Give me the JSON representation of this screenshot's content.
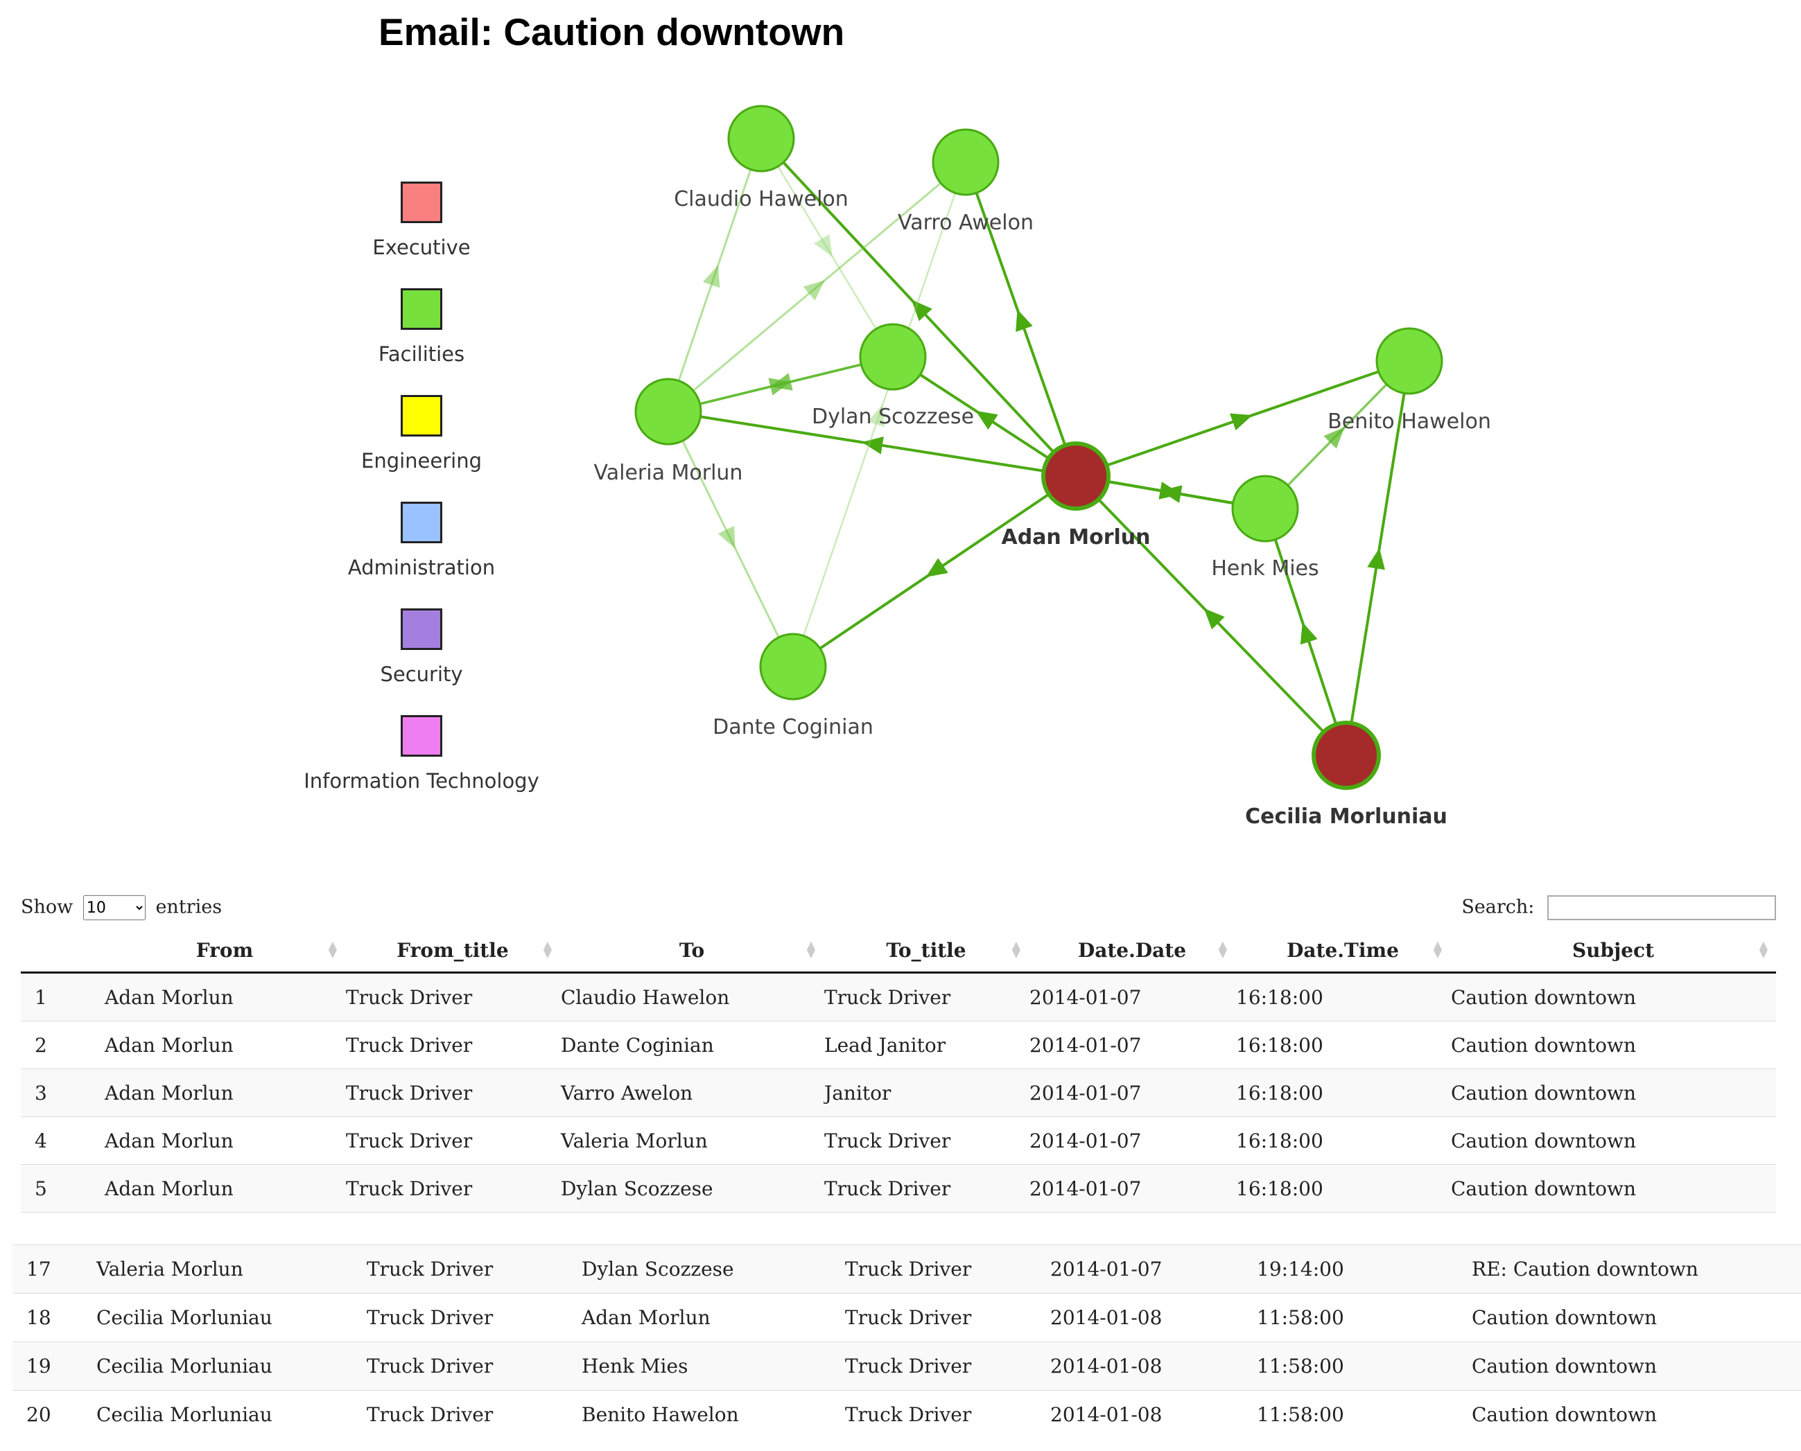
{
  "title": "Email: Caution downtown",
  "legend": [
    {
      "label": "Executive",
      "color": "#f98080"
    },
    {
      "label": "Facilities",
      "color": "#78e03c"
    },
    {
      "label": "Engineering",
      "color": "#ffff00"
    },
    {
      "label": "Administration",
      "color": "#99c2ff"
    },
    {
      "label": "Security",
      "color": "#a57fe0"
    },
    {
      "label": "Information Technology",
      "color": "#ef7ef0"
    }
  ],
  "graph": {
    "node_colors": {
      "Executive": "#a52a2a",
      "Facilities": "#78e03c"
    },
    "nodes": [
      {
        "id": "claudio",
        "label": "Claudio Hawelon",
        "department": "Facilities",
        "bold": false
      },
      {
        "id": "varro",
        "label": "Varro Awelon",
        "department": "Facilities",
        "bold": false
      },
      {
        "id": "dylan",
        "label": "Dylan Scozzese",
        "department": "Facilities",
        "bold": false
      },
      {
        "id": "valeria",
        "label": "Valeria Morlun",
        "department": "Facilities",
        "bold": false
      },
      {
        "id": "adan",
        "label": "Adan Morlun",
        "department": "Executive",
        "bold": true
      },
      {
        "id": "benito",
        "label": "Benito Hawelon",
        "department": "Facilities",
        "bold": false
      },
      {
        "id": "henk",
        "label": "Henk Mies",
        "department": "Facilities",
        "bold": false
      },
      {
        "id": "dante",
        "label": "Dante Coginian",
        "department": "Facilities",
        "bold": false
      },
      {
        "id": "cecilia",
        "label": "Cecilia Morluniau",
        "department": "Executive",
        "bold": true
      }
    ],
    "edges": [
      {
        "from": "adan",
        "to": "claudio",
        "strength": "strong"
      },
      {
        "from": "adan",
        "to": "varro",
        "strength": "strong"
      },
      {
        "from": "adan",
        "to": "dylan",
        "strength": "strong"
      },
      {
        "from": "adan",
        "to": "valeria",
        "strength": "strong"
      },
      {
        "from": "adan",
        "to": "dante",
        "strength": "strong"
      },
      {
        "from": "adan",
        "to": "benito",
        "strength": "strong"
      },
      {
        "from": "adan",
        "to": "henk",
        "strength": "strong"
      },
      {
        "from": "henk",
        "to": "adan",
        "strength": "strong"
      },
      {
        "from": "henk",
        "to": "benito",
        "strength": "medium"
      },
      {
        "from": "cecilia",
        "to": "adan",
        "strength": "strong"
      },
      {
        "from": "cecilia",
        "to": "henk",
        "strength": "strong"
      },
      {
        "from": "cecilia",
        "to": "benito",
        "strength": "strong"
      },
      {
        "from": "valeria",
        "to": "claudio",
        "strength": "light"
      },
      {
        "from": "valeria",
        "to": "varro",
        "strength": "light"
      },
      {
        "from": "valeria",
        "to": "dylan",
        "strength": "medium"
      },
      {
        "from": "dylan",
        "to": "valeria",
        "strength": "medium"
      },
      {
        "from": "valeria",
        "to": "dante",
        "strength": "light"
      },
      {
        "from": "dante",
        "to": "varro",
        "strength": "faint"
      },
      {
        "from": "claudio",
        "to": "dylan",
        "strength": "faint"
      }
    ]
  },
  "table": {
    "show_label": "Show",
    "entries_label": "entries",
    "page_length": "10",
    "search_label": "Search:",
    "search_value": "",
    "columns": [
      "",
      "From",
      "From_title",
      "To",
      "To_title",
      "Date.Date",
      "Date.Time",
      "Subject"
    ],
    "rows_top": [
      [
        "1",
        "Adan Morlun",
        "Truck Driver",
        "Claudio Hawelon",
        "Truck Driver",
        "2014-01-07",
        "16:18:00",
        "Caution downtown"
      ],
      [
        "2",
        "Adan Morlun",
        "Truck Driver",
        "Dante Coginian",
        "Lead Janitor",
        "2014-01-07",
        "16:18:00",
        "Caution downtown"
      ],
      [
        "3",
        "Adan Morlun",
        "Truck Driver",
        "Varro Awelon",
        "Janitor",
        "2014-01-07",
        "16:18:00",
        "Caution downtown"
      ],
      [
        "4",
        "Adan Morlun",
        "Truck Driver",
        "Valeria Morlun",
        "Truck Driver",
        "2014-01-07",
        "16:18:00",
        "Caution downtown"
      ],
      [
        "5",
        "Adan Morlun",
        "Truck Driver",
        "Dylan Scozzese",
        "Truck Driver",
        "2014-01-07",
        "16:18:00",
        "Caution downtown"
      ]
    ],
    "rows_bottom": [
      [
        "17",
        "Valeria Morlun",
        "Truck Driver",
        "Dylan Scozzese",
        "Truck Driver",
        "2014-01-07",
        "19:14:00",
        "RE: Caution downtown"
      ],
      [
        "18",
        "Cecilia Morluniau",
        "Truck Driver",
        "Adan Morlun",
        "Truck Driver",
        "2014-01-08",
        "11:58:00",
        "Caution downtown"
      ],
      [
        "19",
        "Cecilia Morluniau",
        "Truck Driver",
        "Henk Mies",
        "Truck Driver",
        "2014-01-08",
        "11:58:00",
        "Caution downtown"
      ],
      [
        "20",
        "Cecilia Morluniau",
        "Truck Driver",
        "Benito Hawelon",
        "Truck Driver",
        "2014-01-08",
        "11:58:00",
        "Caution downtown"
      ]
    ]
  }
}
